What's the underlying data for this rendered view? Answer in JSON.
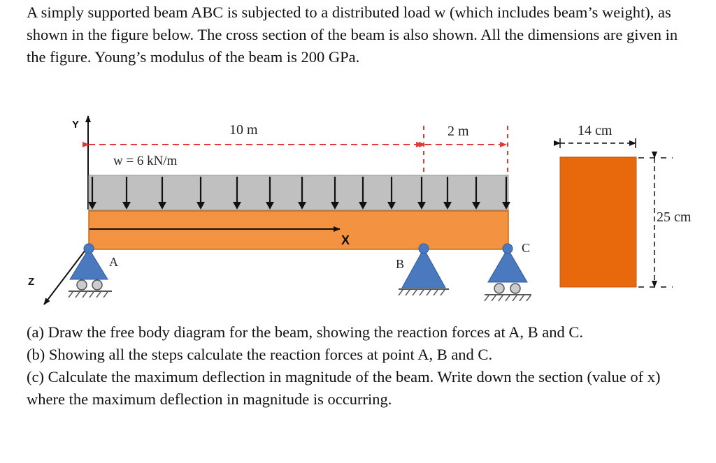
{
  "problem": {
    "intro": "A simply supported beam ABC is subjected to a distributed load w (which includes beam’s weight), as shown in the figure below. The cross section of the beam is also shown.  All the dimensions are given in the figure. Young’s modulus of the beam is 200 GPa.",
    "question_a": "(a) Draw the free body diagram for the beam, showing the reaction forces at A, B and C.",
    "question_b": "(b) Showing all the steps calculate the reaction forces at point A, B and C.",
    "question_c": "(c) Calculate the maximum deflection in magnitude of the beam. Write down the section (value of x) where the maximum deflection in magnitude is occurring."
  },
  "figure": {
    "span_ab_label": "10 m",
    "span_bc_label": "2 m",
    "load_label": "w = 6 kN/m",
    "axis_y": "Y",
    "axis_x": "X",
    "axis_z": "Z",
    "point_a": "A",
    "point_b": "B",
    "point_c": "C",
    "section_width_label": "14 cm",
    "section_height_label": "25 cm",
    "colors": {
      "beam": "#f39240",
      "load_band": "#c0c0c0",
      "support": "#4a79c0",
      "section": "#e8690c",
      "dimension": "#e53935"
    }
  }
}
